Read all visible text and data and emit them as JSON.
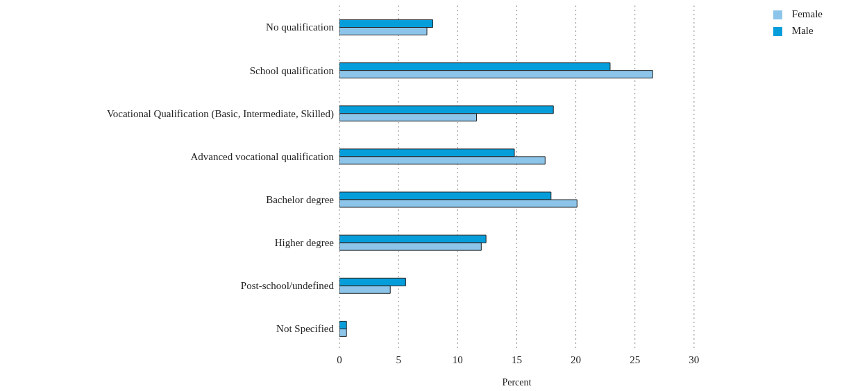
{
  "chart_data": {
    "type": "bar",
    "orientation": "horizontal",
    "xlabel": "Percent",
    "categories": [
      "No qualification",
      "School qualification",
      "Vocational Qualification (Basic, Intermediate, Skilled)",
      "Advanced vocational qualification",
      "Bachelor degree",
      "Higher degree",
      "Post-school/undefined",
      "Not Specified"
    ],
    "series": [
      {
        "name": "Male",
        "color": "#069ddb",
        "values": [
          7.9,
          22.9,
          18.1,
          14.8,
          17.9,
          12.4,
          5.6,
          0.6
        ]
      },
      {
        "name": "Female",
        "color": "#8dc5ea",
        "values": [
          7.4,
          26.5,
          11.6,
          17.4,
          20.1,
          12.0,
          4.3,
          0.6
        ]
      }
    ],
    "xlim": [
      0,
      30
    ],
    "xticks": [
      0,
      5,
      10,
      15,
      20,
      25,
      30
    ],
    "grid": "x",
    "legend": "top right"
  }
}
